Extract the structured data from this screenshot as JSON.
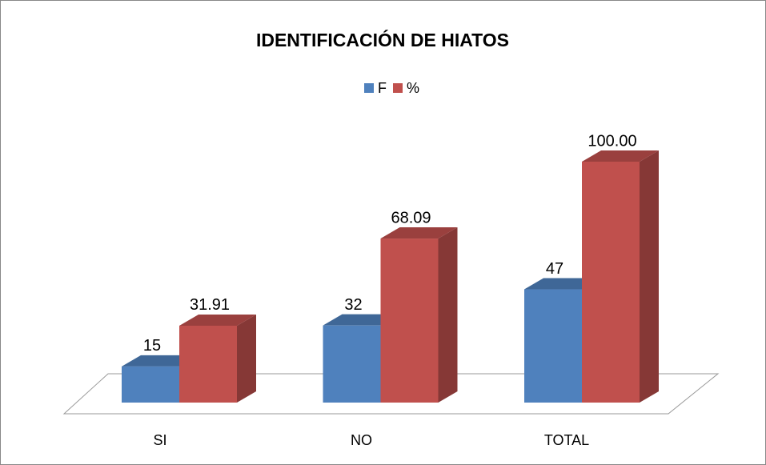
{
  "chart_data": {
    "type": "bar3d",
    "title": "IDENTIFICACIÓN DE HIATOS",
    "categories": [
      "SI",
      "NO",
      "TOTAL"
    ],
    "series": [
      {
        "name": "F",
        "color": "#4f81bd",
        "values": [
          15,
          32,
          47
        ]
      },
      {
        "name": "%",
        "color": "#c0504d",
        "values": [
          31.91,
          68.09,
          100
        ],
        "value_labels": [
          "31.91",
          "68.09",
          "100.00"
        ]
      }
    ],
    "legend": "top"
  }
}
